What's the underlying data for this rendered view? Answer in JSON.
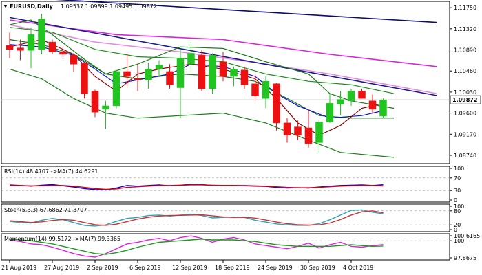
{
  "chart_data": {
    "type": "candlestick",
    "symbol_header": "EURUSD,Daily",
    "ohlc_header": "1.09537 1.09899 1.09495 1.09872",
    "current_price_label": "1.09872",
    "price_axis_labels": [
      "1.11750",
      "1.11320",
      "1.10890",
      "1.10460",
      "1.10030",
      "1.09600",
      "1.09170",
      "1.08740"
    ],
    "price_ylim": [
      1.086,
      1.1185
    ],
    "date_labels": [
      {
        "index": 0,
        "label": "21 Aug 2019"
      },
      {
        "index": 4,
        "label": "27 Aug 2019"
      },
      {
        "index": 8,
        "label": "2 Sep 2019"
      },
      {
        "index": 12,
        "label": "6 Sep 2019"
      },
      {
        "index": 16,
        "label": "12 Sep 2019"
      },
      {
        "index": 20,
        "label": "18 Sep 2019"
      },
      {
        "index": 24,
        "label": "24 Sep 2019"
      },
      {
        "index": 28,
        "label": "30 Sep 2019"
      },
      {
        "index": 32,
        "label": "4 Oct 2019"
      }
    ],
    "candles": [
      {
        "o": 1.1098,
        "h": 1.1124,
        "l": 1.1072,
        "c": 1.109
      },
      {
        "o": 1.1093,
        "h": 1.111,
        "l": 1.1068,
        "c": 1.1088
      },
      {
        "o": 1.1088,
        "h": 1.1135,
        "l": 1.1052,
        "c": 1.112
      },
      {
        "o": 1.109,
        "h": 1.1162,
        "l": 1.108,
        "c": 1.1152
      },
      {
        "o": 1.1105,
        "h": 1.111,
        "l": 1.108,
        "c": 1.1085
      },
      {
        "o": 1.1085,
        "h": 1.1098,
        "l": 1.107,
        "c": 1.108
      },
      {
        "o": 1.1078,
        "h": 1.1082,
        "l": 1.1045,
        "c": 1.106
      },
      {
        "o": 1.1062,
        "h": 1.1065,
        "l": 1.099,
        "c": 1.1
      },
      {
        "o": 1.1005,
        "h": 1.1008,
        "l": 1.0952,
        "c": 1.0962
      },
      {
        "o": 1.0968,
        "h": 1.0985,
        "l": 1.0928,
        "c": 1.0975
      },
      {
        "o": 1.0975,
        "h": 1.1048,
        "l": 1.097,
        "c": 1.1045
      },
      {
        "o": 1.1045,
        "h": 1.108,
        "l": 1.1015,
        "c": 1.1035
      },
      {
        "o": 1.103,
        "h": 1.106,
        "l": 1.1005,
        "c": 1.1028
      },
      {
        "o": 1.1028,
        "h": 1.1062,
        "l": 1.101,
        "c": 1.105
      },
      {
        "o": 1.105,
        "h": 1.1068,
        "l": 1.1035,
        "c": 1.1058
      },
      {
        "o": 1.1045,
        "h": 1.106,
        "l": 1.101,
        "c": 1.1018
      },
      {
        "o": 1.1012,
        "h": 1.109,
        "l": 1.095,
        "c": 1.1072
      },
      {
        "o": 1.106,
        "h": 1.1105,
        "l": 1.1045,
        "c": 1.1082
      },
      {
        "o": 1.1078,
        "h": 1.1088,
        "l": 1.1005,
        "c": 1.101
      },
      {
        "o": 1.101,
        "h": 1.1082,
        "l": 1.1,
        "c": 1.1078
      },
      {
        "o": 1.1065,
        "h": 1.1085,
        "l": 1.1025,
        "c": 1.1035
      },
      {
        "o": 1.1035,
        "h": 1.1055,
        "l": 1.1015,
        "c": 1.105
      },
      {
        "o": 1.1048,
        "h": 1.1055,
        "l": 1.101,
        "c": 1.1018
      },
      {
        "o": 1.102,
        "h": 1.104,
        "l": 1.0985,
        "c": 1.0995
      },
      {
        "o": 1.099,
        "h": 1.1035,
        "l": 1.097,
        "c": 1.1025
      },
      {
        "o": 1.102,
        "h": 1.1022,
        "l": 1.0925,
        "c": 1.094
      },
      {
        "o": 1.094,
        "h": 1.095,
        "l": 1.09,
        "c": 1.0915
      },
      {
        "o": 1.0932,
        "h": 1.0945,
        "l": 1.0905,
        "c": 1.0915
      },
      {
        "o": 1.093,
        "h": 1.0965,
        "l": 1.089,
        "c": 1.0898
      },
      {
        "o": 1.09,
        "h": 1.0945,
        "l": 1.088,
        "c": 1.0942
      },
      {
        "o": 1.0942,
        "h": 1.1,
        "l": 1.094,
        "c": 1.098
      },
      {
        "o": 1.0978,
        "h": 1.1005,
        "l": 1.0955,
        "c": 1.0988
      },
      {
        "o": 1.0985,
        "h": 1.101,
        "l": 1.0975,
        "c": 1.1005
      },
      {
        "o": 1.1005,
        "h": 1.101,
        "l": 1.099,
        "c": 1.099
      },
      {
        "o": 1.0985,
        "h": 1.0998,
        "l": 1.096,
        "c": 1.0968
      },
      {
        "o": 1.0954,
        "h": 1.099,
        "l": 1.095,
        "c": 1.0987
      }
    ],
    "overlays": [
      {
        "color": "#0b0b6e",
        "values": [
          [
            -2,
            1.12
          ],
          [
            17,
            1.1175
          ],
          [
            40,
            1.1145
          ]
        ]
      },
      {
        "color": "#dd22dd",
        "values": [
          [
            0,
            1.115
          ],
          [
            10,
            1.112
          ],
          [
            20,
            1.111
          ],
          [
            30,
            1.108
          ],
          [
            40,
            1.1055
          ]
        ]
      },
      {
        "color": "#e58be0",
        "values": [
          [
            0,
            1.114
          ],
          [
            8,
            1.1105
          ],
          [
            16,
            1.1085
          ],
          [
            24,
            1.106
          ],
          [
            30,
            1.104
          ],
          [
            40,
            1.1
          ]
        ]
      },
      {
        "color": "#1a1a8c",
        "values": [
          [
            0,
            1.1155
          ],
          [
            40,
            1.0996
          ]
        ]
      },
      {
        "color": "#1a8c1a",
        "values": [
          [
            0,
            1.1135
          ],
          [
            4,
            1.1125
          ],
          [
            8,
            1.109
          ],
          [
            12,
            1.1075
          ],
          [
            16,
            1.1072
          ],
          [
            20,
            1.1065
          ],
          [
            24,
            1.104
          ],
          [
            28,
            1.1025
          ],
          [
            32,
            1.1018
          ],
          [
            36,
            1.1
          ]
        ]
      },
      {
        "color": "#1a7d1a",
        "values": [
          [
            0,
            1.114
          ],
          [
            2,
            1.115
          ],
          [
            4,
            1.112
          ],
          [
            7,
            1.107
          ],
          [
            9,
            1.104
          ],
          [
            12,
            1.106
          ],
          [
            16,
            1.1095
          ],
          [
            20,
            1.1092
          ],
          [
            24,
            1.1065
          ],
          [
            28,
            1.104
          ],
          [
            30,
            1.1
          ],
          [
            32,
            1.0985
          ],
          [
            36,
            1.097
          ]
        ]
      },
      {
        "color": "#1a7d1a",
        "values": [
          [
            0,
            1.105
          ],
          [
            3,
            1.103
          ],
          [
            6,
            1.099
          ],
          [
            9,
            1.096
          ],
          [
            12,
            1.095
          ],
          [
            16,
            1.0955
          ],
          [
            20,
            1.096
          ],
          [
            24,
            1.094
          ],
          [
            28,
            1.0905
          ],
          [
            31,
            1.088
          ],
          [
            36,
            1.087
          ]
        ]
      },
      {
        "color": "#1a6d1a",
        "values": [
          [
            0,
            1.111
          ],
          [
            3,
            1.11
          ],
          [
            6,
            1.108
          ],
          [
            9,
            1.104
          ],
          [
            12,
            1.103
          ],
          [
            16,
            1.104
          ],
          [
            20,
            1.1035
          ],
          [
            23,
            1.1025
          ],
          [
            26,
            1.099
          ],
          [
            29,
            1.0955
          ],
          [
            32,
            1.095
          ],
          [
            36,
            1.095
          ]
        ]
      },
      {
        "color": "#1010d0",
        "values": [
          [
            0,
            1.11
          ],
          [
            3,
            1.1095
          ],
          [
            6,
            1.1078
          ],
          [
            8,
            1.105
          ],
          [
            10,
            1.102
          ],
          [
            12,
            1.1028
          ],
          [
            15,
            1.104
          ],
          [
            17,
            1.106
          ],
          [
            20,
            1.1055
          ],
          [
            23,
            1.1035
          ],
          [
            25,
            1.1
          ],
          [
            27,
            1.0975
          ],
          [
            30,
            1.095
          ],
          [
            33,
            1.0955
          ],
          [
            35,
            1.0965
          ]
        ]
      },
      {
        "color": "#8b0000",
        "values": [
          [
            0,
            1.1095
          ],
          [
            3,
            1.111
          ],
          [
            6,
            1.108
          ],
          [
            8,
            1.1035
          ],
          [
            10,
            1.1005
          ],
          [
            12,
            1.104
          ],
          [
            14,
            1.105
          ],
          [
            17,
            1.106
          ],
          [
            20,
            1.105
          ],
          [
            23,
            1.103
          ],
          [
            25,
            1.099
          ],
          [
            27,
            1.094
          ],
          [
            29,
            1.0915
          ],
          [
            31,
            1.0935
          ],
          [
            33,
            1.097
          ],
          [
            35,
            1.098
          ]
        ]
      }
    ],
    "rsi": {
      "label": "RSI(14) 48.4707  ->MA(7) 44.6291",
      "axis_labels": [
        "100",
        "70",
        "30",
        "0"
      ],
      "levels": [
        100,
        70,
        30,
        0
      ],
      "series": [
        {
          "color": "#0000dd",
          "values": [
            48,
            46,
            44,
            47,
            49,
            45,
            41,
            36,
            33,
            32,
            38,
            46,
            44,
            46,
            48,
            45,
            47,
            50,
            49,
            46,
            46,
            46,
            45,
            44,
            43,
            40,
            38,
            39,
            38,
            41,
            44,
            46,
            47,
            48,
            46,
            48.4707
          ]
        },
        {
          "color": "#dd0000",
          "values": [
            46,
            46,
            45,
            45,
            46,
            46,
            44,
            40,
            36,
            34,
            35,
            40,
            42,
            44,
            46,
            46,
            47,
            48,
            48,
            47,
            46,
            46,
            46,
            45,
            44,
            42,
            40,
            39,
            39,
            40,
            42,
            44,
            45,
            46,
            46,
            44.6291
          ]
        }
      ]
    },
    "stoch": {
      "label": "Stoch(5,3,3) 67.6862 71.3797",
      "axis_labels": [
        "100",
        "80",
        "20",
        "0"
      ],
      "levels": [
        100,
        80,
        20,
        0
      ],
      "series": [
        {
          "color": "#2ba3b8",
          "values": [
            35,
            30,
            28,
            40,
            48,
            42,
            30,
            18,
            15,
            20,
            35,
            48,
            52,
            60,
            62,
            58,
            62,
            66,
            60,
            50,
            52,
            54,
            52,
            40,
            32,
            24,
            20,
            18,
            18,
            25,
            42,
            62,
            82,
            84,
            74,
            67.6862
          ]
        },
        {
          "color": "#cc3333",
          "values": [
            38,
            34,
            30,
            33,
            39,
            43,
            40,
            30,
            21,
            18,
            23,
            34,
            45,
            53,
            58,
            60,
            61,
            62,
            63,
            59,
            54,
            52,
            53,
            49,
            41,
            32,
            25,
            21,
            19,
            20,
            28,
            43,
            62,
            76,
            80,
            71.3797
          ]
        }
      ]
    },
    "momentum": {
      "label": "Momentum(14) 99.5172  ->MA(7) 99.3365",
      "axis_labels": [
        "100.6165",
        "100",
        "97.8675"
      ],
      "ylim": [
        97.8675,
        100.6165
      ],
      "series": [
        {
          "color": "#dd22dd",
          "values": [
            100.1,
            99.9,
            99.6,
            99.5,
            99.2,
            98.8,
            98.4,
            98.1,
            97.95,
            98.4,
            99.0,
            99.6,
            99.8,
            100.1,
            100.3,
            100.0,
            100.4,
            100.6,
            100.3,
            99.8,
            100.2,
            100.4,
            100.1,
            99.6,
            99.4,
            99.2,
            99.0,
            99.3,
            99.7,
            99.1,
            99.5,
            99.8,
            99.3,
            99.2,
            99.4,
            99.5172
          ]
        },
        {
          "color": "#1a9a1a",
          "values": [
            100.2,
            100.1,
            100.0,
            99.8,
            99.6,
            99.3,
            99.0,
            98.7,
            98.4,
            98.3,
            98.5,
            98.8,
            99.2,
            99.5,
            99.8,
            99.9,
            100.0,
            100.1,
            100.2,
            100.1,
            100.1,
            100.1,
            100.0,
            99.9,
            99.7,
            99.5,
            99.4,
            99.3,
            99.3,
            99.3,
            99.3,
            99.4,
            99.5,
            99.4,
            99.3,
            99.3365
          ]
        }
      ]
    }
  }
}
